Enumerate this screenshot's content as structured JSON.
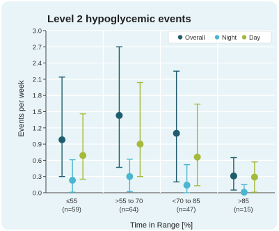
{
  "chart_data": {
    "type": "scatter",
    "title": "Level 2 hypoglycemic events",
    "xlabel": "Time in Range [%]",
    "ylabel": "Events per week",
    "ylim": [
      0,
      3.0
    ],
    "yticks": [
      "0.0",
      "0.3",
      "0.6",
      "0.9",
      "1.2",
      "1.5",
      "1.8",
      "2.1",
      "2.4",
      "2.7",
      "3.0"
    ],
    "categories": [
      {
        "label": "≤55",
        "n": "(n=59)"
      },
      {
        "label": ">55 to 70",
        "n": "(n=64)"
      },
      {
        "label": "<70 to 85",
        "n": "(n=47)"
      },
      {
        "label": ">85",
        "n": "(n=15)"
      }
    ],
    "legend_position": "top-right",
    "series": [
      {
        "name": "Overall",
        "color": "#1f5d6e",
        "values": [
          0.98,
          1.43,
          1.1,
          0.31
        ],
        "lower": [
          0.3,
          0.47,
          0.2,
          0.05
        ],
        "upper": [
          2.14,
          2.7,
          2.25,
          0.65
        ]
      },
      {
        "name": "Night",
        "color": "#4bb6d0",
        "values": [
          0.23,
          0.3,
          0.14,
          0.01
        ],
        "lower": [
          0.01,
          0.02,
          0.0,
          0.0
        ],
        "upper": [
          0.61,
          0.62,
          0.52,
          0.15
        ]
      },
      {
        "name": "Day",
        "color": "#a5b93a",
        "values": [
          0.69,
          0.9,
          0.66,
          0.29
        ],
        "lower": [
          0.25,
          0.3,
          0.13,
          0.01
        ],
        "upper": [
          1.46,
          2.04,
          1.64,
          0.57
        ]
      }
    ]
  }
}
